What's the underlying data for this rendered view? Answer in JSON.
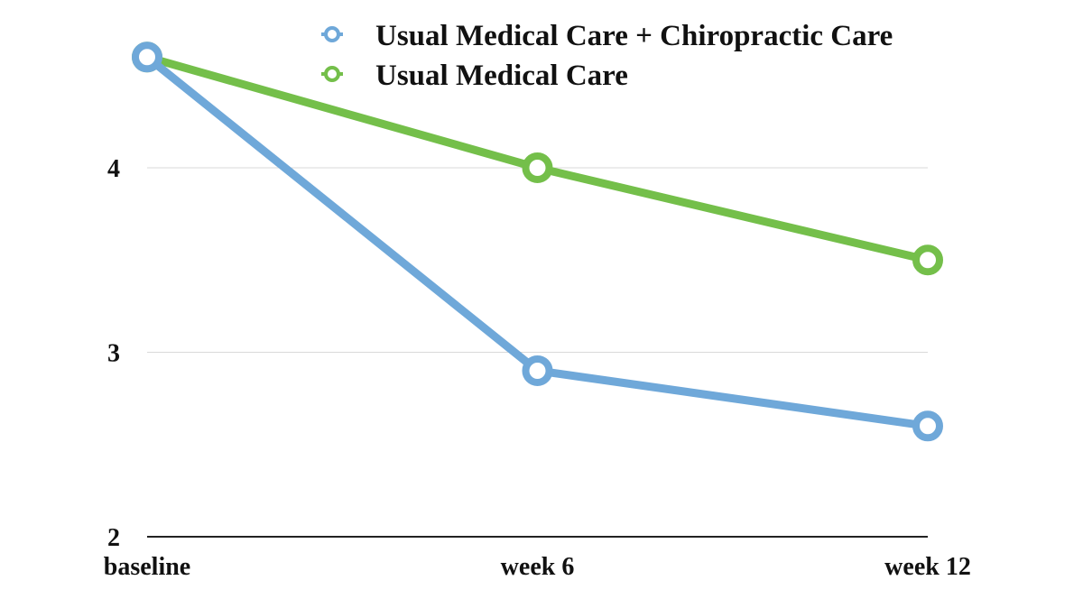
{
  "chart_data": {
    "type": "line",
    "categories": [
      "baseline",
      "week 6",
      "week 12"
    ],
    "series": [
      {
        "name": "Usual Medical Care + Chiropractic Care",
        "values": [
          4.6,
          2.9,
          2.6
        ],
        "color": "#6fa8d9"
      },
      {
        "name": "Usual Medical Care",
        "values": [
          4.6,
          4.0,
          3.5
        ],
        "color": "#74bf4a"
      }
    ],
    "yticks": [
      2,
      3,
      4
    ],
    "ylim": [
      2,
      4.75
    ],
    "grid": true,
    "legend": "top-center",
    "title": "",
    "xlabel": "",
    "ylabel": ""
  }
}
